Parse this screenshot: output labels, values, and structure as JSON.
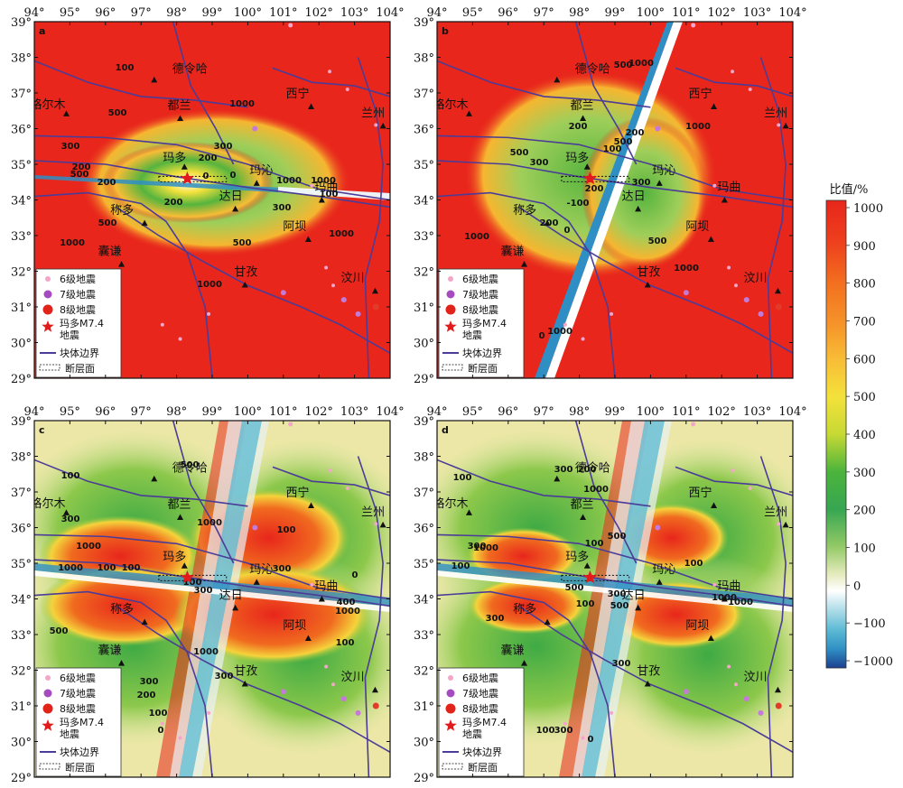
{
  "axes": {
    "lon_labels": [
      "94°",
      "95°",
      "96°",
      "97°",
      "98°",
      "99°",
      "100°",
      "101°",
      "102°",
      "103°",
      "104°"
    ],
    "lat_labels": [
      "39°",
      "38°",
      "37°",
      "36°",
      "35°",
      "34°",
      "33°",
      "32°",
      "31°",
      "30°",
      "29°"
    ]
  },
  "panels": [
    {
      "id": "a",
      "label": "a",
      "bg": "#e8261c",
      "contours": [
        [
          "100",
          138,
          78
        ],
        [
          "500",
          130,
          128
        ],
        [
          "300",
          78,
          165
        ],
        [
          "200",
          90,
          188
        ],
        [
          "500",
          88,
          196
        ],
        [
          "200",
          118,
          205
        ],
        [
          "300",
          247,
          165
        ],
        [
          "200",
          230,
          178
        ],
        [
          "0",
          228,
          198
        ],
        [
          "0",
          258,
          197
        ],
        [
          "1000",
          268,
          118
        ],
        [
          "200",
          192,
          227
        ],
        [
          "500",
          119,
          250
        ],
        [
          "300",
          312,
          233
        ],
        [
          "500",
          268,
          272
        ],
        [
          "1000",
          80,
          272
        ],
        [
          "1000",
          232,
          318
        ],
        [
          "1000",
          378,
          262
        ],
        [
          "1000",
          320,
          203
        ],
        [
          "100",
          364,
          218
        ],
        [
          "1000",
          358,
          203
        ]
      ]
    },
    {
      "id": "b",
      "label": "b",
      "bg": "#e8261c",
      "contours": [
        [
          "500",
          690,
          75
        ],
        [
          "1000",
          710,
          73
        ],
        [
          "200",
          640,
          143
        ],
        [
          "500",
          575,
          172
        ],
        [
          "300",
          597,
          183
        ],
        [
          "500",
          690,
          160
        ],
        [
          "200",
          703,
          150
        ],
        [
          "100",
          678,
          168
        ],
        [
          "300",
          710,
          205
        ],
        [
          "-100",
          640,
          228
        ],
        [
          "200",
          658,
          212
        ],
        [
          "0",
          628,
          258
        ],
        [
          "1000",
          528,
          265
        ],
        [
          "200",
          608,
          250
        ],
        [
          "500",
          728,
          270
        ],
        [
          "1000",
          760,
          300
        ],
        [
          "1000",
          773,
          143
        ],
        [
          "1000",
          620,
          370
        ],
        [
          "0",
          600,
          375
        ]
      ]
    },
    {
      "id": "c",
      "label": "c",
      "bg": "#ece7a6",
      "contours": [
        [
          "100",
          78,
          530
        ],
        [
          "500",
          210,
          518
        ],
        [
          "300",
          78,
          578
        ],
        [
          "100",
          317,
          590
        ],
        [
          "1000",
          98,
          608
        ],
        [
          "1000",
          78,
          632
        ],
        [
          "100",
          118,
          632
        ],
        [
          "100",
          145,
          632
        ],
        [
          "300",
          312,
          633
        ],
        [
          "0",
          393,
          640
        ],
        [
          "100",
          213,
          648
        ],
        [
          "300",
          225,
          657
        ],
        [
          "400",
          383,
          670
        ],
        [
          "1000",
          385,
          680
        ],
        [
          "500",
          65,
          702
        ],
        [
          "1000",
          228,
          725
        ],
        [
          "300",
          248,
          752
        ],
        [
          "300",
          165,
          758
        ],
        [
          "200",
          162,
          773
        ],
        [
          "100",
          382,
          715
        ],
        [
          "100",
          175,
          793
        ],
        [
          "0",
          178,
          812
        ],
        [
          "1000",
          232,
          582
        ]
      ]
    },
    {
      "id": "d",
      "label": "d",
      "bg": "#ece7a6",
      "contours": [
        [
          "100",
          512,
          532
        ],
        [
          "300",
          624,
          523
        ],
        [
          "200",
          650,
          523
        ],
        [
          "1000",
          660,
          545
        ],
        [
          "300",
          528,
          608
        ],
        [
          "1000",
          538,
          610
        ],
        [
          "100",
          510,
          630
        ],
        [
          "500",
          683,
          597
        ],
        [
          "500",
          636,
          654
        ],
        [
          "300",
          683,
          661
        ],
        [
          "500",
          686,
          674
        ],
        [
          "100",
          768,
          627
        ],
        [
          "1000",
          802,
          665
        ],
        [
          "1000",
          820,
          670
        ],
        [
          "100",
          658,
          605
        ],
        [
          "300",
          548,
          688
        ],
        [
          "100",
          648,
          672
        ],
        [
          "300",
          688,
          738
        ],
        [
          "300",
          624,
          812
        ],
        [
          "100",
          604,
          812
        ],
        [
          "0",
          654,
          822
        ]
      ]
    }
  ],
  "places": [
    "德令哈",
    "格尔木",
    "都兰",
    "西宁",
    "兰州",
    "玛多",
    "玛沁",
    "达日",
    "玛曲",
    "称多",
    "阿坝",
    "囊谦",
    "甘孜",
    "汶川"
  ],
  "legend": {
    "eq6": "6级地震",
    "eq7": "7级地震",
    "eq8": "8级地震",
    "madoi": "玛多M7.4",
    "madoi2": "地震",
    "block": "块体边界",
    "fault": "断层面"
  },
  "colorbar": {
    "title": "比值/%",
    "ticks": [
      "1000",
      "900",
      "800",
      "700",
      "600",
      "500",
      "400",
      "300",
      "200",
      "100",
      "0",
      "−100",
      "−1000"
    ],
    "colors": [
      "#e8261c",
      "#ef4a1d",
      "#f3711f",
      "#f6962a",
      "#f8bd36",
      "#f4e13b",
      "#c7d934",
      "#8dc740",
      "#4cb43c",
      "#36a651",
      "#93c966",
      "#c8dd8d",
      "#e6ebbe",
      "#ffffff",
      "#a7d9e6",
      "#5ab9d3",
      "#2f8fc4",
      "#2160ab",
      "#1b3f8f"
    ]
  }
}
